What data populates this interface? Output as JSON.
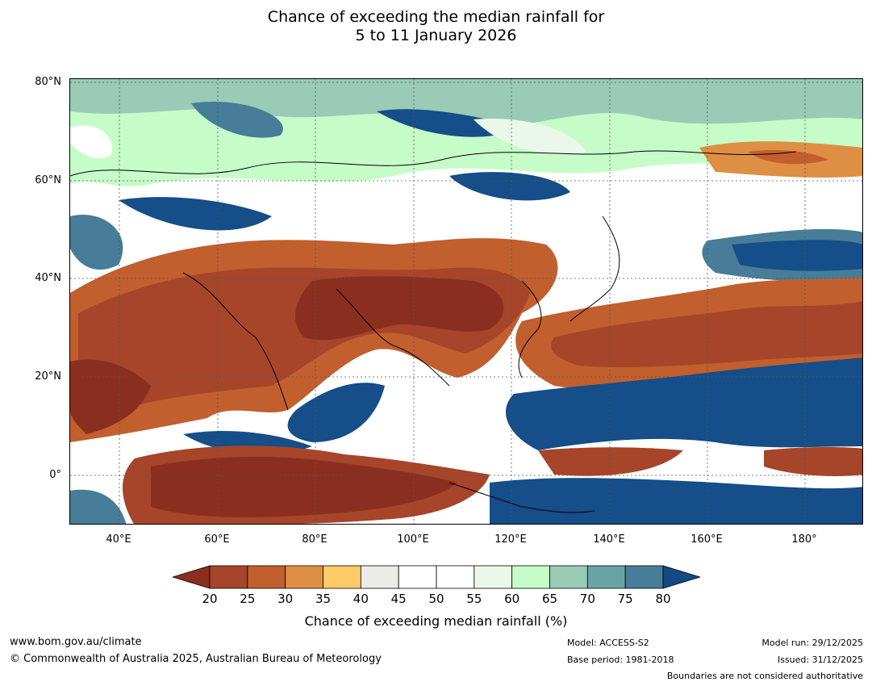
{
  "title_line1": "Chance of exceeding the median rainfall for",
  "title_line2": "5 to 11 January 2026",
  "map": {
    "lat_labels": [
      "80°N",
      "60°N",
      "40°N",
      "20°N",
      "0°"
    ],
    "lon_labels": [
      "40°E",
      "60°E",
      "80°E",
      "100°E",
      "120°E",
      "140°E",
      "160°E",
      "180°"
    ]
  },
  "colorbar": {
    "tick_labels": [
      "20",
      "25",
      "30",
      "35",
      "40",
      "45",
      "50",
      "55",
      "60",
      "65",
      "70",
      "75",
      "80"
    ],
    "colors": [
      "#a6452a",
      "#c15f2e",
      "#de8f44",
      "#fdca68",
      "#ebebe8",
      "#ffffff",
      "#ffffff",
      "#ebf7ea",
      "#c6fcc8",
      "#99cbb6",
      "#6aa3a6",
      "#477d98",
      "#154e88"
    ],
    "under_color": "#8a2f1f",
    "over_color": "#124a84",
    "title": "Chance of exceeding median rainfall (%)"
  },
  "footer": {
    "website": "www.bom.gov.au/climate",
    "copyright": "© Commonwealth of Australia 2025, Australian Bureau of Meteorology",
    "model": "Model: ACCESS-S2",
    "base_period": "Base period: 1981-2018",
    "model_run": "Model run: 29/12/2025",
    "issued": "Issued: 31/12/2025",
    "boundaries_note": "Boundaries are not considered authoritative"
  }
}
